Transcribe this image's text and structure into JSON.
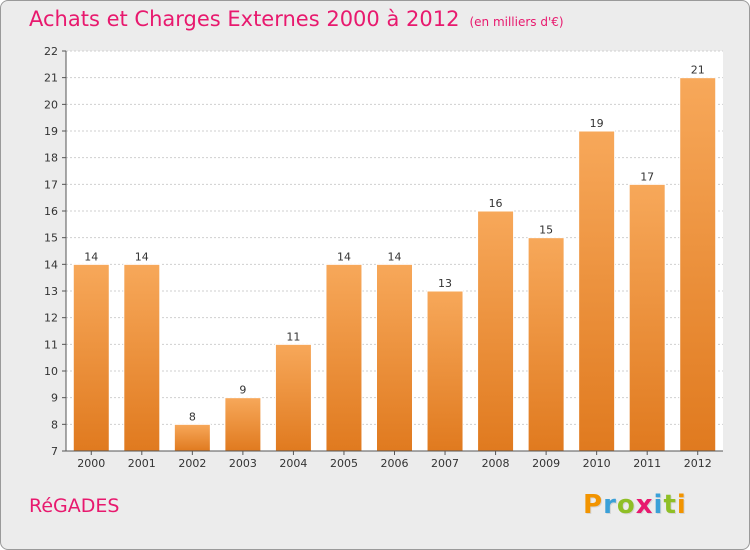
{
  "header": {
    "title": "Achats et Charges Externes 2000 à 2012",
    "unit": "(en milliers d'€)"
  },
  "footer": {
    "commune": "RéGADES",
    "brand": "Proxiti",
    "brand_colors": [
      "#f29400",
      "#3aa0d8",
      "#8fbf26",
      "#e8196e",
      "#3aa0d8",
      "#8fbf26",
      "#f29400"
    ]
  },
  "colors": {
    "title": "#e8196e",
    "bar_top": "#f7a85a",
    "bar_bottom": "#e07a1f",
    "background": "#ececec",
    "plot_background": "#ffffff",
    "grid": "#cfcfcf"
  },
  "chart_data": {
    "type": "bar",
    "title": "Achats et Charges Externes 2000 à 2012",
    "subtitle": "(en milliers d'€)",
    "categories": [
      "2000",
      "2001",
      "2002",
      "2003",
      "2004",
      "2005",
      "2006",
      "2007",
      "2008",
      "2009",
      "2010",
      "2011",
      "2012"
    ],
    "values": [
      14,
      14,
      8,
      9,
      11,
      14,
      14,
      13,
      16,
      15,
      19,
      17,
      21
    ],
    "ylim": [
      7,
      22
    ],
    "yticks": [
      7,
      8,
      9,
      10,
      11,
      12,
      13,
      14,
      15,
      16,
      17,
      18,
      19,
      20,
      21,
      22
    ],
    "grid": true,
    "data_labels": true
  }
}
